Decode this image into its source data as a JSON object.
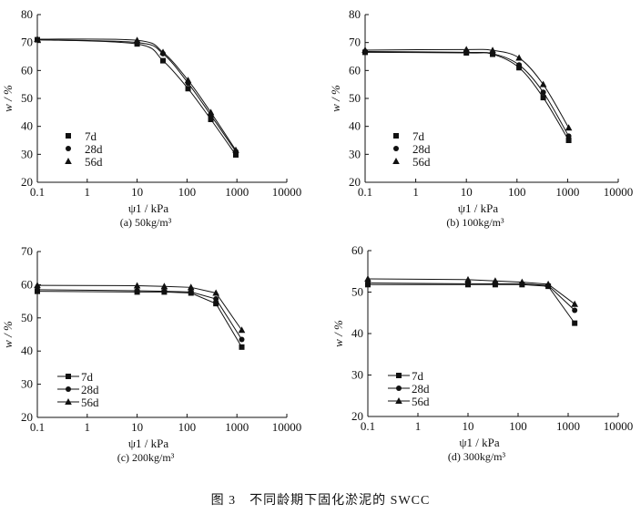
{
  "caption": "图 3　不同龄期下固化淤泥的 SWCC",
  "chart_data": [
    {
      "type": "line",
      "subtitle": "(a) 50kg/m³",
      "xlabel": "ψ1 / kPa",
      "ylabel": "w / %",
      "xscale": "log",
      "xlim": [
        0.1,
        10000
      ],
      "ylim": [
        20,
        80
      ],
      "xticks": [
        "0.1",
        "1",
        "10",
        "100",
        "1000",
        "10000"
      ],
      "yticks": [
        20,
        30,
        40,
        50,
        60,
        70,
        80
      ],
      "smooth": true,
      "legend_style": "markers",
      "legend_placement": "bottom-left",
      "x": [
        0.1,
        10,
        33,
        105,
        300,
        950
      ],
      "series": [
        {
          "name": "7d",
          "marker": "square",
          "values": [
            71,
            69.5,
            63.5,
            53.5,
            42.5,
            29.8
          ]
        },
        {
          "name": "28d",
          "marker": "circle",
          "values": [
            71,
            70,
            66,
            55.5,
            44,
            31
          ]
        },
        {
          "name": "56d",
          "marker": "triangle",
          "values": [
            71.2,
            70.8,
            66.5,
            56.5,
            45,
            31.5
          ]
        }
      ]
    },
    {
      "type": "line",
      "subtitle": "(b) 100kg/m³",
      "xlabel": "ψ1 / kPa",
      "ylabel": "w / %",
      "xscale": "log",
      "xlim": [
        0.1,
        10000
      ],
      "ylim": [
        20,
        80
      ],
      "xticks": [
        "0.1",
        "1",
        "10",
        "100",
        "1000",
        "10000"
      ],
      "yticks": [
        20,
        30,
        40,
        50,
        60,
        70,
        80
      ],
      "smooth": true,
      "legend_style": "markers",
      "legend_placement": "bottom-left",
      "x": [
        0.1,
        10,
        33,
        110,
        330,
        1050
      ],
      "series": [
        {
          "name": "7d",
          "marker": "square",
          "values": [
            66.5,
            66.3,
            65.8,
            61,
            50.3,
            35
          ]
        },
        {
          "name": "28d",
          "marker": "circle",
          "values": [
            66.8,
            66.5,
            66,
            62,
            52.2,
            36.5
          ]
        },
        {
          "name": "56d",
          "marker": "triangle",
          "values": [
            67.3,
            67.5,
            67.2,
            64.5,
            55,
            39.5
          ]
        }
      ]
    },
    {
      "type": "line",
      "subtitle": "(c) 200kg/m³",
      "xlabel": "ψ1 / kPa",
      "ylabel": "w / %",
      "xscale": "log",
      "xlim": [
        0.1,
        10000
      ],
      "ylim": [
        20,
        70
      ],
      "xticks": [
        "0.1",
        "1",
        "10",
        "100",
        "1000",
        "10000"
      ],
      "yticks": [
        20,
        30,
        40,
        50,
        60,
        70
      ],
      "smooth": false,
      "legend_style": "line-markers",
      "legend_placement": "bottom-left",
      "x": [
        0.1,
        10,
        35,
        120,
        380,
        1250
      ],
      "series": [
        {
          "name": "7d",
          "marker": "square",
          "values": [
            58,
            57.8,
            57.8,
            57.5,
            54.3,
            41.2
          ]
        },
        {
          "name": "28d",
          "marker": "circle",
          "values": [
            58.5,
            58.2,
            58,
            57.8,
            55.7,
            43.5
          ]
        },
        {
          "name": "56d",
          "marker": "triangle",
          "values": [
            59.8,
            59.7,
            59.5,
            59.2,
            57.5,
            46.3
          ]
        }
      ]
    },
    {
      "type": "line",
      "subtitle": "(d) 300kg/m³",
      "xlabel": "ψ1 / kPa",
      "ylabel": "w / %",
      "xscale": "log",
      "xlim": [
        0.1,
        10000
      ],
      "ylim": [
        20,
        60
      ],
      "xticks": [
        "0.1",
        "1",
        "10",
        "100",
        "1000",
        "10000"
      ],
      "yticks": [
        20,
        30,
        40,
        50,
        60
      ],
      "smooth": false,
      "legend_style": "line-markers",
      "legend_placement": "bottom-left",
      "x": [
        0.1,
        10,
        35,
        120,
        400,
        1350
      ],
      "series": [
        {
          "name": "7d",
          "marker": "square",
          "values": [
            51.8,
            51.8,
            51.8,
            51.8,
            51.4,
            42.5
          ]
        },
        {
          "name": "28d",
          "marker": "circle",
          "values": [
            52.2,
            52,
            52,
            52,
            51.6,
            45.6
          ]
        },
        {
          "name": "56d",
          "marker": "triangle",
          "values": [
            53.2,
            53,
            52.7,
            52.4,
            51.9,
            47.1
          ]
        }
      ]
    }
  ]
}
